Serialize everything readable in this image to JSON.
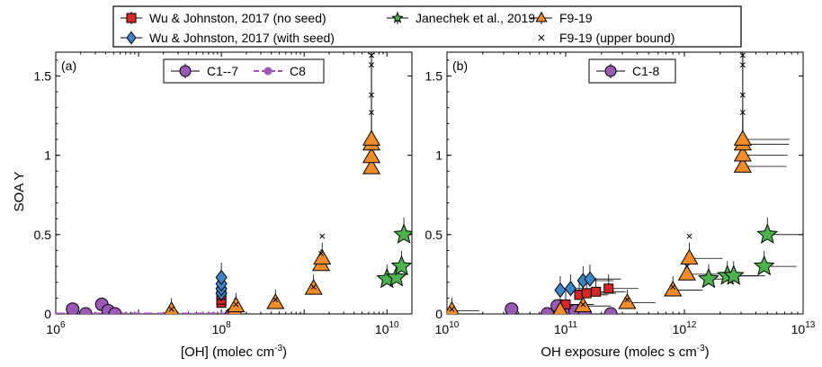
{
  "legend": {
    "entries": [
      {
        "label": "Wu & Johnston, 2017 (no seed)",
        "marker": "square",
        "color": "#d62728"
      },
      {
        "label": "Wu & Johnston, 2017 (with seed)",
        "marker": "diamond",
        "color": "#3a86c8"
      },
      {
        "label": "Janechek et al., 2019",
        "marker": "star",
        "color": "#4cb34c"
      },
      {
        "label": "F9-19",
        "marker": "triangle",
        "color": "#f28c28"
      },
      {
        "label": "F9-19 (upper bound)",
        "marker": "x",
        "color": "#000000"
      }
    ]
  },
  "colors": {
    "c_circle": "#9b59b6",
    "c8_line": "#a24fb2"
  },
  "chart_data": [
    {
      "type": "scatter",
      "panel_label": "(a)",
      "ylabel": "SOA Y",
      "xlabel": "[OH] (molec cm",
      "xlabel_sup": "-3",
      "xlabel_end": ")",
      "x_scale": "log",
      "xlim": [
        1000000,
        20000000000
      ],
      "ylim": [
        0,
        1.65
      ],
      "x_ticks": [
        {
          "value": 1000000,
          "base": "10",
          "exp": "6"
        },
        {
          "value": 100000000,
          "base": "10",
          "exp": "8"
        },
        {
          "value": 10000000000,
          "base": "10",
          "exp": "10"
        }
      ],
      "y_ticks": [
        {
          "value": 0,
          "label": "0"
        },
        {
          "value": 0.5,
          "label": "0.5"
        },
        {
          "value": 1,
          "label": "1"
        },
        {
          "value": 1.5,
          "label": "1.5"
        }
      ],
      "inset_legend": [
        "C1--7",
        "C8"
      ],
      "series": [
        {
          "name": "C1--7",
          "marker": "circle",
          "points": [
            [
              1600000,
              0.03
            ],
            [
              2300000,
              0.0
            ],
            [
              3600000,
              0.06
            ],
            [
              4300000,
              0.02
            ],
            [
              5200000,
              0.0
            ]
          ]
        },
        {
          "name": "C8",
          "marker": "circle-line",
          "points": [
            [
              1000000,
              0.0
            ],
            [
              130000000,
              0.0
            ]
          ]
        },
        {
          "name": "Wu & Johnston, 2017 (no seed)",
          "marker": "square",
          "points": [
            [
              100000000,
              0.07
            ],
            [
              100000000,
              0.09
            ],
            [
              100000000,
              0.12
            ]
          ]
        },
        {
          "name": "Wu & Johnston, 2017 (with seed)",
          "marker": "diamond",
          "points": [
            [
              100000000,
              0.13
            ],
            [
              100000000,
              0.16
            ],
            [
              100000000,
              0.19
            ],
            [
              100000000,
              0.23
            ]
          ]
        },
        {
          "name": "F9-19",
          "marker": "triangle",
          "points": [
            [
              25000000,
              0.02
            ],
            [
              145000000,
              0.02
            ],
            [
              150000000,
              0.05
            ],
            [
              450000000,
              0.07
            ],
            [
              1300000000,
              0.16
            ],
            [
              1600000000,
              0.31
            ],
            [
              1650000000,
              0.35
            ],
            [
              6500000000,
              0.92
            ],
            [
              6500000000,
              0.99
            ],
            [
              6500000000,
              1.07
            ],
            [
              6500000000,
              1.1
            ]
          ]
        },
        {
          "name": "Janechek et al., 2019",
          "marker": "star",
          "points": [
            [
              10000000000,
              0.22
            ],
            [
              13000000000,
              0.23
            ],
            [
              15000000000,
              0.3
            ],
            [
              16000000000,
              0.5
            ]
          ]
        },
        {
          "name": "F9-19 (upper bound)",
          "marker": "x",
          "points": [
            [
              25000000,
              0.03
            ],
            [
              150000000,
              0.06
            ],
            [
              450000000,
              0.09
            ],
            [
              1300000000,
              0.17
            ],
            [
              1600000000,
              0.38
            ],
            [
              1650000000,
              0.49
            ],
            [
              6500000000,
              1.27
            ],
            [
              6500000000,
              1.38
            ],
            [
              6500000000,
              1.57
            ],
            [
              6500000000,
              1.63
            ]
          ]
        }
      ]
    },
    {
      "type": "scatter",
      "panel_label": "(b)",
      "xlabel": "OH exposure (molec s cm",
      "xlabel_sup": "-3",
      "xlabel_end": ")",
      "x_scale": "log",
      "xlim": [
        10000000000,
        10000000000000
      ],
      "ylim": [
        0,
        1.65
      ],
      "x_ticks": [
        {
          "value": 10000000000,
          "base": "10",
          "exp": "10"
        },
        {
          "value": 100000000000,
          "base": "10",
          "exp": "11"
        },
        {
          "value": 1000000000000,
          "base": "10",
          "exp": "12"
        },
        {
          "value": 10000000000000,
          "base": "10",
          "exp": "13"
        }
      ],
      "y_ticks": [
        {
          "value": 0,
          "label": "0"
        },
        {
          "value": 0.5,
          "label": "0.5"
        },
        {
          "value": 1,
          "label": "1"
        },
        {
          "value": 1.5,
          "label": "1.5"
        }
      ],
      "inset_legend": [
        "C1-8"
      ],
      "series": [
        {
          "name": "C1-8",
          "marker": "circle",
          "points": [
            [
              35000000000,
              0.03
            ],
            [
              70000000000,
              0.0
            ],
            [
              85000000000,
              0.05
            ],
            [
              100000000000,
              0.0
            ],
            [
              120000000000,
              0.02
            ],
            [
              145000000000,
              0.0
            ],
            [
              240000000000,
              0.0
            ]
          ]
        },
        {
          "name": "Wu & Johnston, 2017 (no seed)",
          "marker": "square",
          "points": [
            [
              100000000000,
              0.06
            ],
            [
              130000000000,
              0.12
            ],
            [
              150000000000,
              0.13
            ],
            [
              180000000000,
              0.14
            ],
            [
              230000000000,
              0.16
            ]
          ]
        },
        {
          "name": "Wu & Johnston, 2017 (with seed)",
          "marker": "diamond",
          "points": [
            [
              90000000000,
              0.15
            ],
            [
              110000000000,
              0.16
            ],
            [
              140000000000,
              0.21
            ],
            [
              160000000000,
              0.22
            ]
          ]
        },
        {
          "name": "F9-19",
          "marker": "triangle",
          "points": [
            [
              11000000000,
              0.02
            ],
            [
              90000000000,
              0.02
            ],
            [
              140000000000,
              0.05
            ],
            [
              330000000000,
              0.07
            ],
            [
              800000000000,
              0.15
            ],
            [
              1050000000000,
              0.25
            ],
            [
              1100000000000,
              0.35
            ],
            [
              3100000000000,
              0.93
            ],
            [
              3100000000000,
              1.0
            ],
            [
              3100000000000,
              1.07
            ],
            [
              3100000000000,
              1.1
            ]
          ]
        },
        {
          "name": "Janechek et al., 2019",
          "marker": "star",
          "points": [
            [
              1600000000000,
              0.22
            ],
            [
              2300000000000,
              0.24
            ],
            [
              2600000000000,
              0.24
            ],
            [
              4700000000000,
              0.3
            ],
            [
              5000000000000,
              0.5
            ]
          ]
        },
        {
          "name": "F9-19 (upper bound)",
          "marker": "x",
          "points": [
            [
              11000000000,
              0.03
            ],
            [
              140000000000,
              0.06
            ],
            [
              330000000000,
              0.09
            ],
            [
              800000000000,
              0.17
            ],
            [
              1050000000000,
              0.3
            ],
            [
              1100000000000,
              0.49
            ],
            [
              3100000000000,
              1.27
            ],
            [
              3100000000000,
              1.38
            ],
            [
              3100000000000,
              1.57
            ],
            [
              3100000000000,
              1.63
            ]
          ]
        }
      ]
    }
  ]
}
